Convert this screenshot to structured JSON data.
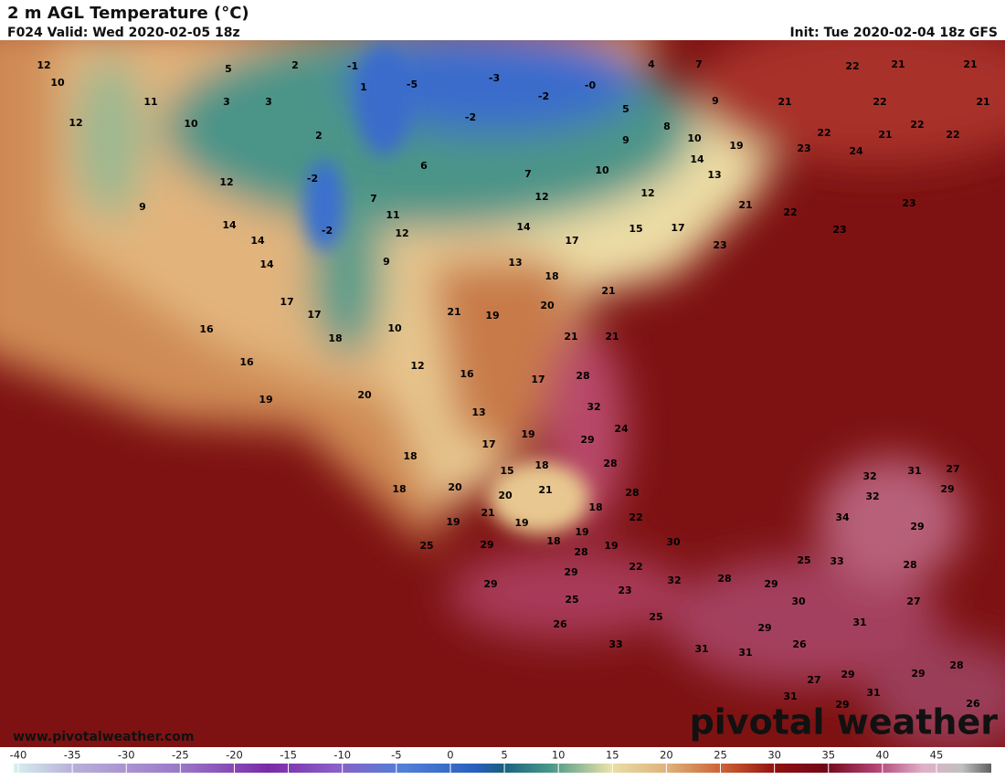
{
  "header": {
    "title": "2 m AGL Temperature (°C)",
    "valid": "F024 Valid: Wed 2020-02-05 18z",
    "init": "Init: Tue 2020-02-04 18z GFS"
  },
  "map": {
    "labels": [
      12,
      10,
      12,
      5,
      2,
      -1,
      -5,
      -3,
      4,
      7,
      22,
      21,
      21,
      11,
      10,
      3,
      3,
      1,
      -2,
      -2,
      "-0",
      5,
      9,
      21,
      22,
      21,
      2,
      8,
      10,
      9,
      22,
      21,
      22,
      22,
      23,
      24,
      19,
      14,
      13,
      6,
      7,
      10,
      -2,
      12,
      7,
      12,
      12,
      21,
      22,
      23,
      9,
      11,
      14,
      14,
      15,
      17,
      23,
      -2,
      12,
      14,
      17,
      23,
      14,
      9,
      13,
      18,
      21,
      17,
      20,
      17,
      21,
      19,
      16,
      10,
      21,
      21,
      18,
      16,
      12,
      16,
      28,
      17,
      19,
      20,
      32,
      13,
      24,
      19,
      29,
      17,
      18,
      18,
      28,
      32,
      31,
      27,
      15,
      18,
      20,
      21,
      28,
      32,
      29,
      20,
      18,
      21,
      19,
      19,
      22,
      34,
      29,
      19,
      18,
      19,
      30,
      25,
      29,
      28,
      25,
      33,
      28,
      22,
      29,
      32,
      28,
      29,
      29,
      23,
      25,
      30,
      27,
      25,
      31,
      26,
      29,
      33,
      26,
      31,
      31,
      28,
      27,
      29,
      29,
      31,
      31,
      29,
      26
    ]
  },
  "colorbar": {
    "ticks": [
      -40,
      -35,
      -30,
      -25,
      -20,
      -15,
      -10,
      -5,
      0,
      5,
      10,
      15,
      20,
      25,
      30,
      35,
      40,
      45
    ]
  },
  "watermark": {
    "url": "www.pivotalweather.com",
    "logo": "pivotal weather"
  }
}
